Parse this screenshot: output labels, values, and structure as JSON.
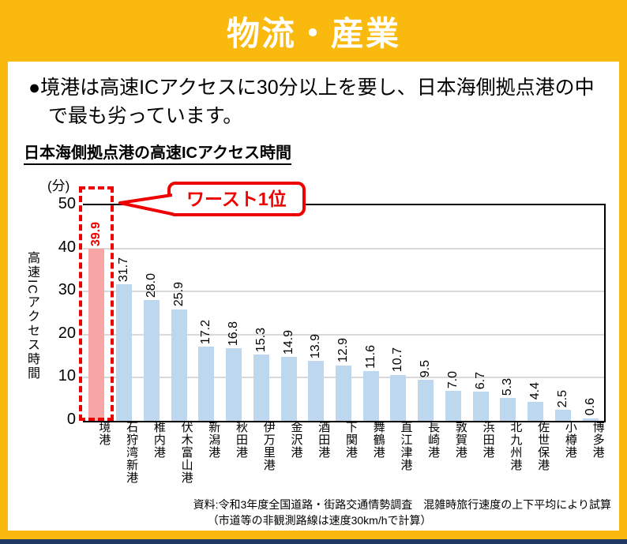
{
  "banner": {
    "title": "物流・産業"
  },
  "bullet": {
    "marker": "●",
    "text": "境港は高速ICアクセスに30分以上を要し、日本海側拠点港の中で最も劣っています。"
  },
  "chart": {
    "title": "日本海側拠点港の高速ICアクセス時間",
    "unit_label": "(分)",
    "y_axis_label": "高速ICアクセス時間",
    "callout_label": "ワースト1位"
  },
  "chart_data": {
    "type": "bar",
    "title": "日本海側拠点港の高速ICアクセス時間",
    "ylabel": "高速ICアクセス時間",
    "y_unit": "分",
    "ylim": [
      0,
      50
    ],
    "yticks": [
      0,
      10,
      20,
      30,
      40,
      50
    ],
    "grid": true,
    "categories": [
      "境港",
      "石狩湾新港",
      "稚内港",
      "伏木富山港",
      "新潟港",
      "秋田港",
      "伊万里港",
      "金沢港",
      "酒田港",
      "下関港",
      "舞鶴港",
      "直江津港",
      "長崎港",
      "敦賀港",
      "浜田港",
      "北九州港",
      "佐世保港",
      "小樽港",
      "博多港"
    ],
    "values": [
      39.9,
      31.7,
      28.0,
      25.9,
      17.2,
      16.8,
      15.3,
      14.9,
      13.9,
      12.9,
      11.6,
      10.7,
      9.5,
      7.0,
      6.7,
      5.3,
      4.4,
      2.5,
      0.6
    ],
    "highlight_index": 0,
    "annotation": "ワースト1位",
    "colors": {
      "highlight_bar": "#F7A5A5",
      "default_bar": "#BDD7EE",
      "highlight_label": "#EE0000",
      "accent_red": "#EE0000",
      "gridline": "#D9D9D9",
      "frame_yellow": "#F9B90E",
      "footer_navy": "#1F3864"
    }
  },
  "source": {
    "line1": "資料:令和3年度全国道路・街路交通情勢調査　混雑時旅行速度の上下平均により試算",
    "line2": "（市道等の非観測路線は速度30km/hで計算）"
  }
}
